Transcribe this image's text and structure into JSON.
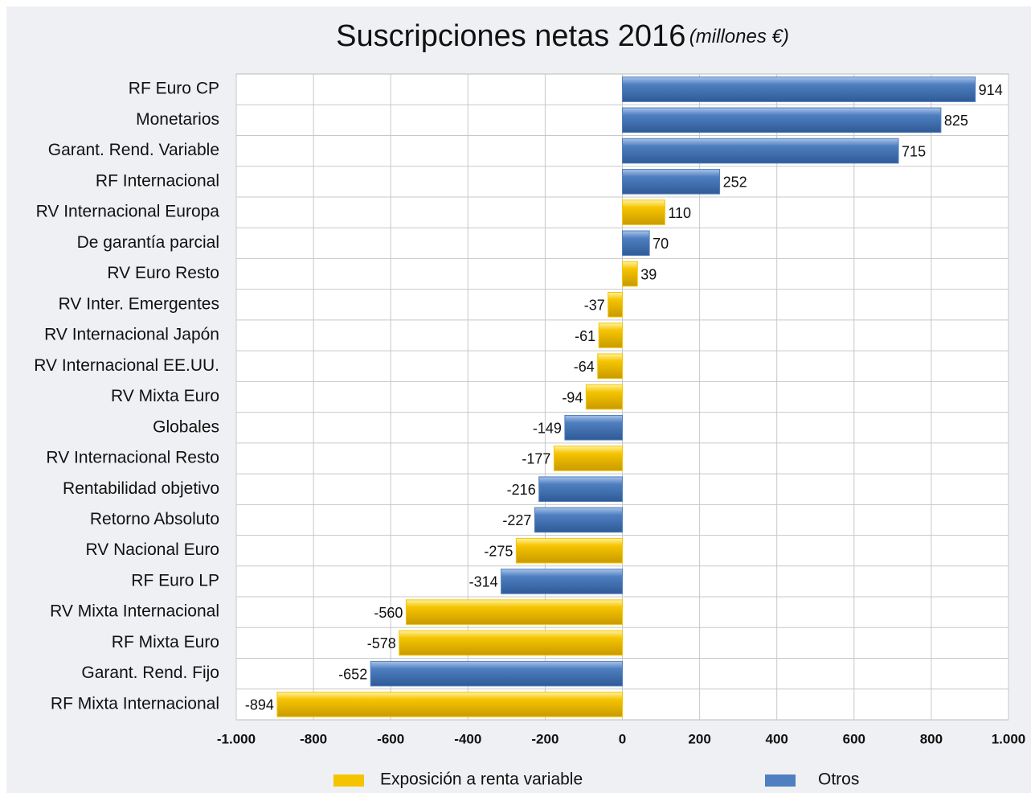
{
  "chart_data": {
    "type": "hbar",
    "title": "Suscripciones netas 2016",
    "title_unit": "(millones €)",
    "categories": [
      "RF Euro CP",
      "Monetarios",
      "Garant. Rend. Variable",
      "RF Internacional",
      "RV Internacional Europa",
      "De garantía parcial",
      "RV Euro Resto",
      "RV Inter. Emergentes",
      "RV Internacional Japón",
      "RV Internacional EE.UU.",
      "RV Mixta Euro",
      "Globales",
      "RV Internacional Resto",
      "Rentabilidad objetivo",
      "Retorno Absoluto",
      "RV Nacional Euro",
      "RF Euro LP",
      "RV Mixta Internacional",
      "RF Mixta Euro",
      "Garant. Rend. Fijo",
      "RF Mixta Internacional"
    ],
    "series": [
      {
        "name": "Exposición a renta variable",
        "color": "#f5c400",
        "values": [
          null,
          null,
          null,
          null,
          110,
          null,
          39,
          -37,
          -61,
          -64,
          -94,
          null,
          -177,
          null,
          null,
          -275,
          null,
          -560,
          -578,
          null,
          -894
        ]
      },
      {
        "name": "Otros",
        "color": "#4f7fc0",
        "values": [
          914,
          825,
          715,
          252,
          null,
          70,
          null,
          null,
          null,
          null,
          null,
          -149,
          null,
          -216,
          -227,
          null,
          -314,
          null,
          null,
          -652,
          null
        ]
      }
    ],
    "xlim": [
      -1000,
      1000
    ],
    "xticks": [
      {
        "value": -1000,
        "label": "-1.000"
      },
      -800,
      -600,
      -400,
      -200,
      0,
      200,
      400,
      600,
      800,
      {
        "value": 1000,
        "label": "1.000"
      }
    ],
    "grid": true
  }
}
